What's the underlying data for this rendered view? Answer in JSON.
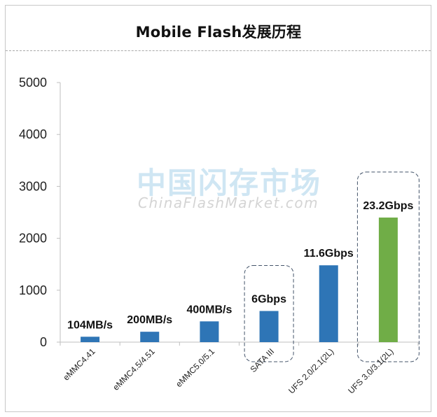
{
  "chart_data": {
    "type": "bar",
    "title": "Mobile Flash发展历程",
    "categories": [
      "eMMC4.41",
      "eMMC4.5/4.51",
      "eMMC5.0/5.1",
      "SATA III",
      "UFS 2.0/2.1(2L)",
      "UFS 3.0/3.1(2L)"
    ],
    "values": [
      104,
      200,
      400,
      600,
      1480,
      2400
    ],
    "data_labels": [
      "104MB/s",
      "200MB/s",
      "400MB/s",
      "6Gbps",
      "11.6Gbps",
      "23.2Gbps"
    ],
    "bar_colors": [
      "#2e75b6",
      "#2e75b6",
      "#2e75b6",
      "#2e75b6",
      "#2e75b6",
      "#70ad47"
    ],
    "highlighted_categories": [
      "SATA III",
      "UFS 3.0/3.1(2L)"
    ],
    "ylim": [
      0,
      5000
    ],
    "yticks": [
      0,
      1000,
      2000,
      3000,
      4000,
      5000
    ],
    "xlabel": "",
    "ylabel": "",
    "grid": false,
    "legend": "none"
  },
  "watermark": {
    "cn": "中国闪存市场",
    "en": "ChinaFlashMarket.com"
  },
  "colors": {
    "bar_default": "#2e75b6",
    "bar_highlight": "#70ad47",
    "callout_border": "#44546a"
  }
}
